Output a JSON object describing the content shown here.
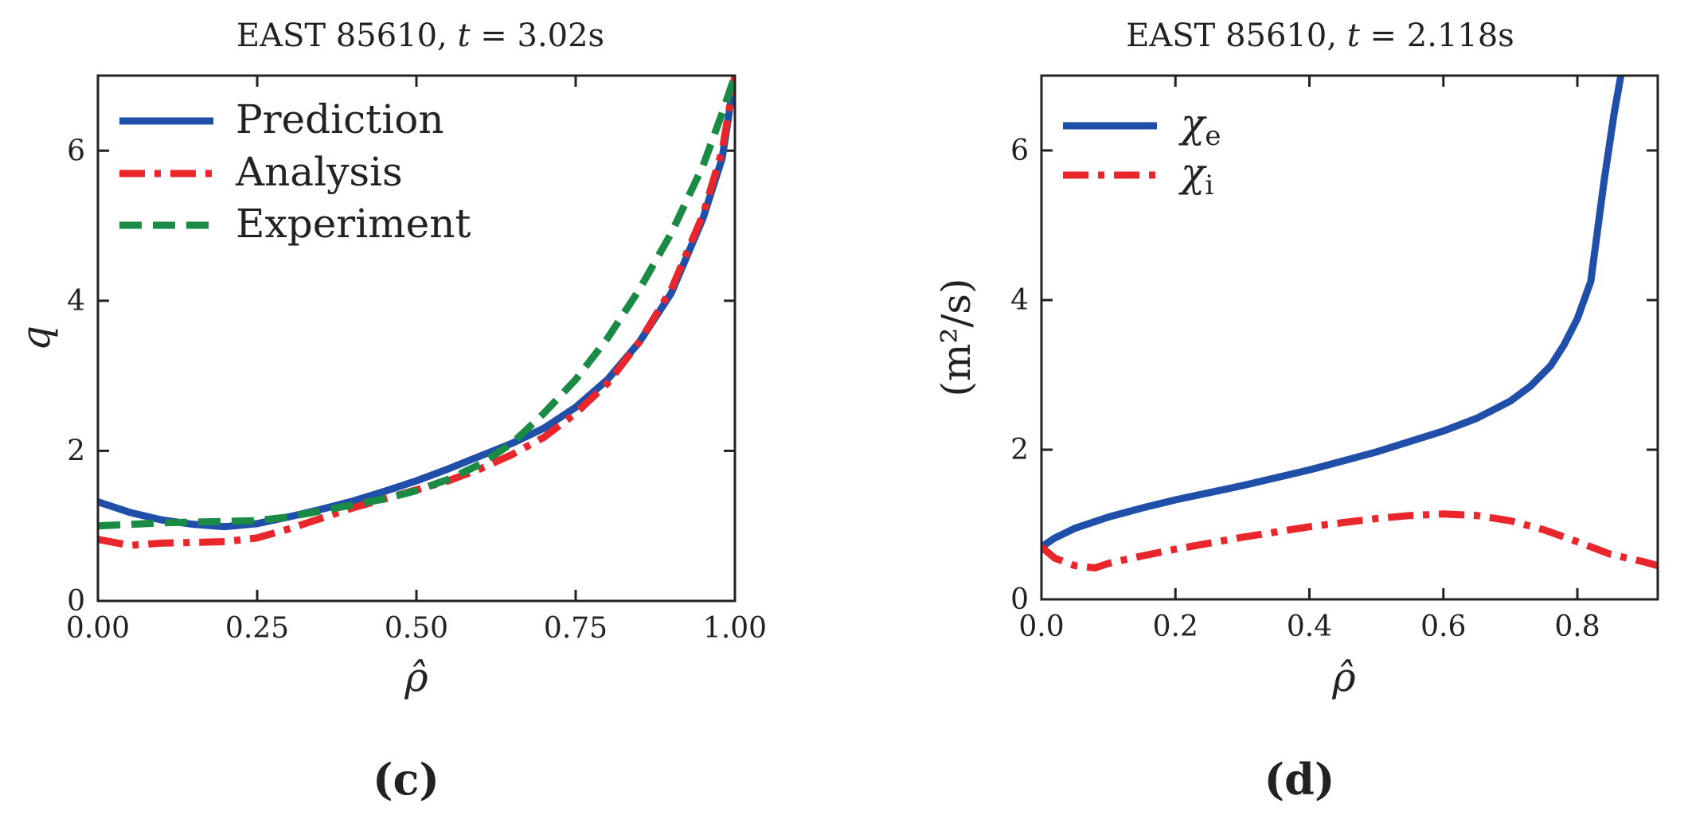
{
  "chart_data": [
    {
      "type": "line",
      "title": "EAST 85610, t = 3.02s",
      "title_prefix": "EAST 85610, ",
      "title_var": "t",
      "title_value": " = 3.02s",
      "xlabel": "ρ̂",
      "ylabel": "q",
      "xlim": [
        0,
        1
      ],
      "ylim": [
        0,
        7
      ],
      "xticks": [
        0,
        0.25,
        0.5,
        0.75,
        1.0
      ],
      "xtick_labels": [
        "0.00",
        "0.25",
        "0.50",
        "0.75",
        "1.00"
      ],
      "yticks": [
        0,
        2,
        4,
        6
      ],
      "ytick_labels": [
        "0",
        "2",
        "4",
        "6"
      ],
      "legend_position": "top-left",
      "panel_label": "(c)",
      "series": [
        {
          "name": "Prediction",
          "color": "#1f4fa8",
          "style": "solid",
          "x": [
            0,
            0.05,
            0.1,
            0.15,
            0.2,
            0.25,
            0.3,
            0.35,
            0.4,
            0.45,
            0.5,
            0.55,
            0.6,
            0.65,
            0.7,
            0.75,
            0.8,
            0.85,
            0.9,
            0.95,
            0.98,
            1.0
          ],
          "y": [
            1.32,
            1.18,
            1.08,
            1.02,
            0.99,
            1.03,
            1.12,
            1.22,
            1.33,
            1.46,
            1.6,
            1.76,
            1.93,
            2.1,
            2.3,
            2.58,
            2.95,
            3.45,
            4.1,
            5.1,
            5.9,
            7.0
          ]
        },
        {
          "name": "Analysis",
          "color": "#e8262b",
          "style": "dashdot",
          "x": [
            0,
            0.05,
            0.1,
            0.15,
            0.2,
            0.25,
            0.3,
            0.35,
            0.4,
            0.45,
            0.5,
            0.55,
            0.6,
            0.65,
            0.7,
            0.75,
            0.8,
            0.85,
            0.9,
            0.95,
            0.98,
            1.0
          ],
          "y": [
            0.82,
            0.74,
            0.77,
            0.78,
            0.79,
            0.84,
            0.96,
            1.1,
            1.24,
            1.36,
            1.48,
            1.6,
            1.76,
            1.95,
            2.18,
            2.5,
            2.9,
            3.45,
            4.15,
            5.15,
            6.0,
            7.0
          ]
        },
        {
          "name": "Experiment",
          "color": "#1b8a45",
          "style": "dashed",
          "x": [
            0,
            0.05,
            0.1,
            0.15,
            0.2,
            0.25,
            0.3,
            0.35,
            0.4,
            0.45,
            0.5,
            0.55,
            0.6,
            0.65,
            0.7,
            0.75,
            0.8,
            0.85,
            0.9,
            0.95,
            0.98,
            1.0
          ],
          "y": [
            1.0,
            1.02,
            1.04,
            1.05,
            1.06,
            1.07,
            1.12,
            1.2,
            1.28,
            1.36,
            1.47,
            1.62,
            1.82,
            2.1,
            2.5,
            2.95,
            3.5,
            4.15,
            4.9,
            5.8,
            6.5,
            7.0
          ]
        }
      ]
    },
    {
      "type": "line",
      "title": "EAST 85610, t = 2.118s",
      "title_prefix": "EAST 85610, ",
      "title_var": "t",
      "title_value": " = 2.118s",
      "xlabel": "ρ̂",
      "ylabel": "(m²/s)",
      "xlim": [
        0,
        0.92
      ],
      "ylim": [
        0,
        7
      ],
      "xticks": [
        0,
        0.2,
        0.4,
        0.6,
        0.8
      ],
      "xtick_labels": [
        "0.0",
        "0.2",
        "0.4",
        "0.6",
        "0.8"
      ],
      "yticks": [
        0,
        2,
        4,
        6
      ],
      "ytick_labels": [
        "0",
        "2",
        "4",
        "6"
      ],
      "legend_position": "top-left",
      "panel_label": "(d)",
      "series": [
        {
          "name": "χe",
          "name_main": "χ",
          "name_sub": "e",
          "color": "#1f4fa8",
          "style": "solid",
          "x": [
            0,
            0.02,
            0.05,
            0.1,
            0.15,
            0.2,
            0.3,
            0.4,
            0.5,
            0.6,
            0.65,
            0.7,
            0.73,
            0.76,
            0.78,
            0.8,
            0.82,
            0.84,
            0.855,
            0.865
          ],
          "y": [
            0.7,
            0.82,
            0.95,
            1.1,
            1.22,
            1.33,
            1.52,
            1.73,
            1.97,
            2.25,
            2.42,
            2.65,
            2.85,
            3.12,
            3.4,
            3.75,
            4.25,
            5.6,
            6.5,
            7.0
          ]
        },
        {
          "name": "χi",
          "name_main": "χ",
          "name_sub": "i",
          "color": "#e8262b",
          "style": "dashdot",
          "x": [
            0,
            0.02,
            0.05,
            0.08,
            0.1,
            0.15,
            0.2,
            0.3,
            0.4,
            0.5,
            0.55,
            0.6,
            0.65,
            0.7,
            0.75,
            0.8,
            0.85,
            0.9,
            0.92
          ],
          "y": [
            0.7,
            0.55,
            0.45,
            0.42,
            0.48,
            0.58,
            0.67,
            0.83,
            0.97,
            1.08,
            1.12,
            1.14,
            1.12,
            1.05,
            0.93,
            0.77,
            0.6,
            0.5,
            0.45
          ]
        }
      ]
    }
  ]
}
